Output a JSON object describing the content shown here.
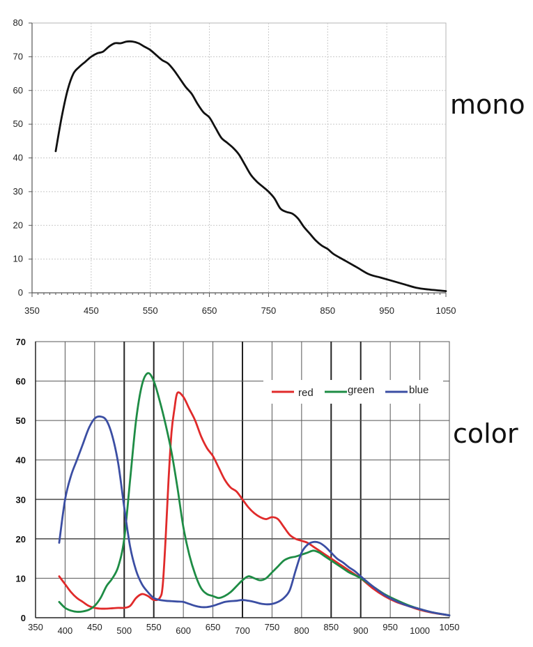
{
  "labels": {
    "mono": "mono",
    "color": "color"
  },
  "chart_data": [
    {
      "type": "line",
      "label": "mono",
      "xlim": [
        350,
        1050
      ],
      "ylim": [
        0,
        80
      ],
      "x_ticks": [
        350,
        450,
        550,
        650,
        750,
        850,
        950,
        1050
      ],
      "y_ticks": [
        0,
        10,
        20,
        30,
        40,
        50,
        60,
        70,
        80
      ],
      "grid": true,
      "series": [
        {
          "color": "#111111",
          "x": [
            390,
            400,
            410,
            420,
            430,
            440,
            450,
            460,
            470,
            480,
            490,
            500,
            510,
            520,
            530,
            540,
            550,
            560,
            570,
            580,
            590,
            600,
            610,
            620,
            630,
            640,
            650,
            660,
            670,
            680,
            690,
            700,
            710,
            720,
            730,
            740,
            750,
            760,
            770,
            780,
            790,
            800,
            810,
            820,
            830,
            840,
            850,
            860,
            880,
            900,
            920,
            940,
            960,
            980,
            1000,
            1020,
            1050
          ],
          "y": [
            42,
            52,
            60,
            65,
            67,
            68.5,
            70,
            71,
            71.5,
            73,
            74,
            74,
            74.5,
            74.5,
            74,
            73,
            72,
            70.5,
            69,
            68,
            66,
            63.5,
            61,
            59,
            56,
            53.5,
            52,
            49,
            46,
            44.5,
            43,
            41,
            38,
            35,
            33,
            31.5,
            30,
            28,
            25,
            24,
            23.5,
            22,
            19.5,
            17.5,
            15.5,
            14,
            13,
            11.5,
            9.5,
            7.5,
            5.5,
            4.5,
            3.5,
            2.5,
            1.5,
            1,
            0.5
          ]
        }
      ]
    },
    {
      "type": "line",
      "label": "color",
      "xlim": [
        350,
        1050
      ],
      "ylim": [
        0,
        70
      ],
      "x_ticks": [
        350,
        400,
        450,
        500,
        550,
        600,
        650,
        700,
        750,
        800,
        850,
        900,
        950,
        1000,
        1050
      ],
      "y_ticks": [
        0,
        10,
        20,
        30,
        40,
        50,
        60,
        70
      ],
      "grid": true,
      "legend": "top-right",
      "series": [
        {
          "name": "red",
          "color": "#e02a2a",
          "x": [
            390,
            400,
            410,
            420,
            430,
            440,
            450,
            460,
            470,
            480,
            490,
            500,
            510,
            520,
            530,
            540,
            550,
            560,
            565,
            570,
            575,
            580,
            585,
            590,
            600,
            610,
            620,
            630,
            640,
            650,
            660,
            670,
            680,
            690,
            700,
            710,
            720,
            730,
            740,
            750,
            760,
            770,
            780,
            790,
            800,
            810,
            820,
            830,
            840,
            850,
            860,
            870,
            880,
            890,
            900,
            920,
            940,
            960,
            980,
            1000,
            1020,
            1050
          ],
          "y": [
            10.5,
            8.5,
            6.5,
            5,
            4,
            3,
            2.5,
            2.3,
            2.3,
            2.4,
            2.5,
            2.5,
            3,
            5,
            6,
            5.5,
            4.5,
            5,
            8,
            20,
            35,
            47,
            53,
            57,
            56,
            53,
            50,
            46,
            43,
            41,
            38,
            35,
            33,
            32,
            30,
            28,
            26.5,
            25.5,
            25,
            25.5,
            25,
            23,
            21,
            20,
            19.5,
            19,
            18,
            17,
            16,
            15,
            14,
            13,
            12,
            11,
            10,
            7.5,
            5.5,
            4,
            3,
            2,
            1.3,
            0.6
          ]
        },
        {
          "name": "green",
          "color": "#1e8c45",
          "x": [
            390,
            400,
            410,
            420,
            430,
            440,
            450,
            460,
            470,
            480,
            490,
            500,
            510,
            520,
            530,
            540,
            550,
            560,
            570,
            580,
            590,
            600,
            610,
            620,
            630,
            640,
            650,
            660,
            670,
            680,
            690,
            700,
            710,
            720,
            730,
            740,
            750,
            760,
            770,
            780,
            790,
            800,
            810,
            820,
            830,
            840,
            850,
            860,
            870,
            880,
            890,
            900,
            920,
            940,
            960,
            980,
            1000,
            1020,
            1050
          ],
          "y": [
            4,
            2.5,
            1.8,
            1.5,
            1.6,
            2,
            3,
            5,
            8,
            10,
            13,
            20,
            35,
            50,
            59,
            62,
            60,
            55,
            49,
            42,
            33,
            23,
            16,
            11,
            7.5,
            6,
            5.5,
            5,
            5.5,
            6.5,
            8,
            9.5,
            10.5,
            10,
            9.5,
            10,
            11.5,
            13,
            14.5,
            15.2,
            15.5,
            16,
            16.5,
            17,
            16.5,
            15.5,
            14.5,
            13.5,
            12.5,
            11.5,
            10.8,
            10,
            8,
            6,
            4.5,
            3.2,
            2.2,
            1.4,
            0.6
          ]
        },
        {
          "name": "blue",
          "color": "#3b4ea3",
          "x": [
            390,
            400,
            410,
            420,
            430,
            440,
            450,
            460,
            470,
            480,
            490,
            500,
            510,
            520,
            530,
            540,
            550,
            560,
            570,
            580,
            590,
            600,
            610,
            620,
            630,
            640,
            650,
            660,
            670,
            680,
            690,
            700,
            710,
            720,
            730,
            740,
            750,
            760,
            770,
            780,
            790,
            800,
            810,
            820,
            830,
            840,
            850,
            860,
            870,
            880,
            890,
            900,
            920,
            940,
            960,
            980,
            1000,
            1020,
            1050
          ],
          "y": [
            19,
            30,
            36,
            40,
            44,
            48,
            50.5,
            51,
            50,
            46,
            39,
            28,
            18,
            12,
            8.5,
            6.5,
            5,
            4.5,
            4.3,
            4.2,
            4.1,
            4,
            3.5,
            3,
            2.7,
            2.7,
            3,
            3.5,
            4,
            4.2,
            4.3,
            4.5,
            4.3,
            4,
            3.6,
            3.4,
            3.5,
            4,
            5,
            7,
            12,
            16.5,
            18.5,
            19.2,
            19,
            18,
            16.5,
            15,
            14,
            12.8,
            11.8,
            10.5,
            8,
            5.8,
            4.2,
            3,
            2.2,
            1.4,
            0.6
          ]
        }
      ]
    }
  ]
}
